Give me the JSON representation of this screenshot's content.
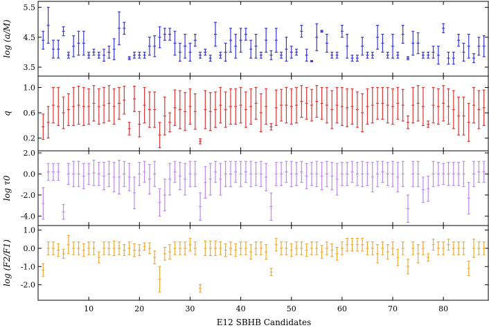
{
  "figure": {
    "xlabel": "E12 SBHB Candidates",
    "x_ticks": [
      "10",
      "20",
      "30",
      "40",
      "50",
      "60",
      "70",
      "80"
    ]
  },
  "chart_data": [
    {
      "type": "scatter",
      "errorbars": true,
      "ylabel": "log (a/M)",
      "color": "#3333dd",
      "xlim": [
        0,
        89
      ],
      "ylim": [
        3.2,
        5.7
      ],
      "y_ticks": [
        "5.5",
        "4.5",
        "3.5"
      ],
      "x": [
        1,
        2,
        3,
        4,
        5,
        6,
        7,
        8,
        9,
        10,
        11,
        12,
        13,
        14,
        15,
        16,
        17,
        18,
        19,
        20,
        21,
        22,
        23,
        24,
        25,
        26,
        27,
        28,
        29,
        30,
        31,
        32,
        33,
        34,
        35,
        36,
        37,
        38,
        39,
        40,
        41,
        42,
        43,
        44,
        45,
        46,
        47,
        48,
        49,
        50,
        51,
        52,
        53,
        54,
        55,
        56,
        57,
        58,
        59,
        60,
        61,
        62,
        63,
        64,
        65,
        66,
        67,
        68,
        69,
        70,
        71,
        72,
        73,
        74,
        75,
        76,
        77,
        78,
        79,
        80,
        81,
        82,
        83,
        84,
        85,
        86,
        87,
        88
      ],
      "y": [
        4.4,
        4.9,
        4.1,
        4.1,
        4.7,
        3.9,
        4.2,
        4.3,
        4.3,
        3.9,
        4.0,
        3.9,
        3.9,
        4.0,
        4.1,
        4.8,
        4.8,
        3.8,
        3.9,
        3.9,
        3.9,
        4.2,
        4.2,
        4.5,
        4.6,
        4.6,
        4.3,
        4.0,
        4.2,
        4.0,
        4.4,
        3.9,
        4.0,
        3.8,
        4.6,
        3.9,
        4.0,
        4.4,
        4.2,
        4.4,
        4.6,
        4.1,
        4.2,
        3.9,
        4.4,
        3.9,
        4.4,
        3.9,
        4.1,
        4.0,
        4.0,
        4.7,
        3.9,
        3.7,
        4.5,
        4.7,
        4.3,
        3.9,
        3.9,
        4.7,
        4.2,
        3.8,
        3.8,
        4.2,
        3.9,
        3.9,
        4.5,
        4.3,
        3.9,
        4.2,
        3.9,
        4.6,
        3.8,
        4.3,
        4.3,
        3.9,
        3.9,
        4.0,
        3.9,
        4.8,
        3.8,
        3.8,
        4.4,
        4.0,
        4.2,
        3.8,
        4.2,
        4.2
      ],
      "err": [
        0.3,
        0.6,
        0.3,
        0.3,
        0.15,
        0.1,
        0.35,
        0.4,
        0.4,
        0.1,
        0.1,
        0.1,
        0.2,
        0.2,
        0.35,
        0.55,
        0.2,
        0.05,
        0.1,
        0.1,
        0.1,
        0.3,
        0.35,
        0.35,
        0.2,
        0.2,
        0.4,
        0.3,
        0.4,
        0.3,
        0.2,
        0.1,
        0.1,
        0.1,
        0.4,
        0.1,
        0.3,
        0.4,
        0.4,
        0.4,
        0.2,
        0.3,
        0.4,
        0.1,
        0.4,
        0.15,
        0.4,
        0.1,
        0.4,
        0.2,
        0.1,
        0.2,
        0.2,
        0.02,
        0.45,
        0.03,
        0.3,
        0.1,
        0.1,
        0.2,
        0.4,
        0.1,
        0.1,
        0.3,
        0.1,
        0.1,
        0.4,
        0.3,
        0.1,
        0.4,
        0.1,
        0.3,
        0.05,
        0.4,
        0.35,
        0.1,
        0.1,
        0.2,
        0.3,
        0.15,
        0.2,
        0.2,
        0.2,
        0.3,
        0.4,
        0.15,
        0.3,
        0.35
      ]
    },
    {
      "type": "scatter",
      "errorbars": true,
      "ylabel": "q",
      "color": "#dd3333",
      "xlim": [
        0,
        89
      ],
      "ylim": [
        0.0,
        1.18
      ],
      "y_ticks": [
        "1.0",
        "0.6",
        "0.2"
      ],
      "x": [
        1,
        2,
        3,
        4,
        5,
        6,
        7,
        8,
        9,
        10,
        11,
        12,
        13,
        14,
        15,
        16,
        17,
        18,
        19,
        20,
        21,
        22,
        23,
        24,
        25,
        26,
        27,
        28,
        29,
        30,
        31,
        32,
        33,
        34,
        35,
        36,
        37,
        38,
        39,
        40,
        41,
        42,
        43,
        44,
        45,
        46,
        47,
        48,
        49,
        50,
        51,
        52,
        53,
        54,
        55,
        56,
        57,
        58,
        59,
        60,
        61,
        62,
        63,
        64,
        65,
        66,
        67,
        68,
        69,
        70,
        71,
        72,
        73,
        74,
        75,
        76,
        77,
        78,
        79,
        80,
        81,
        82,
        83,
        84,
        85,
        86,
        87,
        88
      ],
      "y": [
        0.38,
        0.45,
        0.72,
        0.7,
        0.6,
        0.65,
        0.7,
        0.72,
        0.7,
        0.7,
        0.75,
        0.7,
        0.72,
        0.75,
        0.7,
        0.75,
        0.8,
        0.35,
        0.82,
        0.42,
        0.72,
        0.65,
        0.65,
        0.25,
        0.55,
        0.45,
        0.68,
        0.65,
        0.62,
        0.7,
        0.62,
        0.15,
        0.65,
        0.62,
        0.65,
        0.72,
        0.65,
        0.7,
        0.7,
        0.72,
        0.65,
        0.7,
        0.75,
        0.6,
        0.7,
        0.38,
        0.68,
        0.72,
        0.72,
        0.7,
        0.72,
        0.78,
        0.75,
        0.72,
        0.78,
        0.75,
        0.72,
        0.65,
        0.72,
        0.7,
        0.68,
        0.7,
        0.65,
        0.6,
        0.7,
        0.72,
        0.75,
        0.75,
        0.72,
        0.7,
        0.75,
        0.72,
        0.45,
        0.72,
        0.75,
        0.7,
        0.42,
        0.72,
        0.7,
        0.75,
        0.7,
        0.65,
        0.55,
        0.55,
        0.45,
        0.72,
        0.65,
        0.68
      ],
      "err": [
        0.2,
        0.25,
        0.28,
        0.3,
        0.25,
        0.25,
        0.3,
        0.3,
        0.3,
        0.28,
        0.28,
        0.28,
        0.28,
        0.28,
        0.28,
        0.25,
        0.22,
        0.1,
        0.2,
        0.2,
        0.28,
        0.28,
        0.28,
        0.2,
        0.3,
        0.15,
        0.28,
        0.3,
        0.3,
        0.28,
        0.28,
        0.04,
        0.3,
        0.3,
        0.28,
        0.28,
        0.28,
        0.28,
        0.28,
        0.28,
        0.28,
        0.28,
        0.25,
        0.3,
        0.28,
        0.05,
        0.28,
        0.25,
        0.28,
        0.28,
        0.28,
        0.25,
        0.25,
        0.25,
        0.25,
        0.25,
        0.28,
        0.3,
        0.28,
        0.3,
        0.3,
        0.28,
        0.28,
        0.3,
        0.28,
        0.28,
        0.25,
        0.25,
        0.28,
        0.28,
        0.25,
        0.25,
        0.1,
        0.28,
        0.28,
        0.3,
        0.05,
        0.28,
        0.28,
        0.28,
        0.28,
        0.3,
        0.3,
        0.3,
        0.3,
        0.28,
        0.3,
        0.28
      ]
    },
    {
      "type": "scatter",
      "errorbars": true,
      "ylabel": "log τ0",
      "color": "#bb88ee",
      "xlim": [
        0,
        89
      ],
      "ylim": [
        -4.9,
        2.2
      ],
      "y_ticks": [
        "2.0",
        "0.0",
        "-2.0",
        "-4.0"
      ],
      "x": [
        1,
        2,
        3,
        4,
        5,
        6,
        7,
        8,
        9,
        10,
        11,
        12,
        13,
        14,
        15,
        16,
        17,
        18,
        19,
        20,
        21,
        22,
        23,
        24,
        25,
        26,
        27,
        28,
        29,
        30,
        31,
        32,
        33,
        34,
        35,
        36,
        37,
        38,
        39,
        40,
        41,
        42,
        43,
        44,
        45,
        46,
        47,
        48,
        49,
        50,
        51,
        52,
        53,
        54,
        55,
        56,
        57,
        58,
        59,
        60,
        61,
        62,
        63,
        64,
        65,
        66,
        67,
        68,
        69,
        70,
        71,
        72,
        73,
        74,
        75,
        76,
        77,
        78,
        79,
        80,
        81,
        82,
        83,
        84,
        85,
        86,
        87,
        88
      ],
      "y": [
        -2.8,
        0.2,
        0.2,
        0.2,
        -3.6,
        0.0,
        0.0,
        0.0,
        -0.2,
        0.0,
        0.1,
        0.0,
        -0.2,
        0.0,
        -0.3,
        -0.3,
        0.0,
        -0.3,
        -1.8,
        0.0,
        0.2,
        -0.5,
        0.0,
        -2.7,
        -2.0,
        -0.5,
        0.2,
        -0.2,
        -0.5,
        0.0,
        0.0,
        -3.1,
        -0.8,
        -0.5,
        0.2,
        -0.5,
        0.0,
        0.0,
        0.2,
        0.0,
        0.2,
        0.0,
        0.0,
        0.0,
        -0.3,
        -3.1,
        0.0,
        0.0,
        0.2,
        0.0,
        0.0,
        0.2,
        -0.2,
        0.0,
        0.0,
        -0.2,
        0.0,
        -0.2,
        -0.5,
        0.0,
        0.0,
        0.2,
        0.0,
        0.0,
        0.0,
        -0.3,
        0.0,
        0.2,
        0.0,
        0.0,
        -0.3,
        0.0,
        -3.3,
        0.0,
        0.0,
        -1.5,
        -1.4,
        0.0,
        0.0,
        0.0,
        0.0,
        0.0,
        0.0,
        0.0,
        -2.3,
        0.0,
        0.2,
        0.2
      ],
      "err": [
        1.5,
        0.8,
        0.8,
        0.8,
        0.7,
        1.0,
        1.2,
        1.2,
        1.2,
        1.0,
        1.2,
        1.1,
        1.3,
        1.2,
        1.4,
        1.6,
        1.2,
        1.3,
        1.5,
        1.1,
        1.0,
        1.4,
        1.2,
        1.3,
        1.5,
        1.5,
        1.0,
        1.3,
        1.5,
        1.2,
        1.2,
        1.3,
        1.5,
        1.5,
        1.0,
        1.5,
        1.2,
        1.2,
        1.0,
        1.2,
        1.0,
        1.2,
        1.1,
        1.2,
        1.3,
        1.3,
        1.1,
        1.1,
        1.0,
        1.2,
        1.1,
        1.0,
        1.2,
        1.1,
        1.2,
        1.3,
        1.2,
        1.3,
        1.5,
        1.1,
        1.1,
        1.0,
        1.1,
        1.2,
        1.1,
        1.4,
        1.2,
        1.0,
        1.1,
        1.2,
        1.4,
        1.2,
        1.3,
        1.2,
        1.2,
        1.2,
        1.2,
        1.2,
        1.1,
        1.0,
        1.1,
        1.1,
        1.1,
        1.2,
        1.5,
        1.2,
        1.0,
        1.0
      ]
    },
    {
      "type": "scatter",
      "errorbars": true,
      "ylabel": "log (F2/F1)",
      "color": "#eeaa33",
      "xlim": [
        0,
        89
      ],
      "ylim": [
        -2.85,
        1.25
      ],
      "y_ticks": [
        "1.0",
        "0.0",
        "-1.0",
        "-2.0"
      ],
      "x": [
        1,
        2,
        3,
        4,
        5,
        6,
        7,
        8,
        9,
        10,
        11,
        12,
        13,
        14,
        15,
        16,
        17,
        18,
        19,
        20,
        21,
        22,
        23,
        24,
        25,
        26,
        27,
        28,
        29,
        30,
        31,
        32,
        33,
        34,
        35,
        36,
        37,
        38,
        39,
        40,
        41,
        42,
        43,
        44,
        45,
        46,
        47,
        48,
        49,
        50,
        51,
        52,
        53,
        54,
        55,
        56,
        57,
        58,
        59,
        60,
        61,
        62,
        63,
        64,
        65,
        66,
        67,
        68,
        69,
        70,
        71,
        72,
        73,
        74,
        75,
        76,
        77,
        78,
        79,
        80,
        81,
        82,
        83,
        84,
        85,
        86,
        87,
        88
      ],
      "y": [
        -1.2,
        0.0,
        0.0,
        -0.1,
        -0.3,
        0.2,
        0.0,
        0.0,
        -0.1,
        0.0,
        0.0,
        -0.5,
        0.0,
        0.0,
        0.0,
        0.0,
        -0.1,
        0.0,
        -0.1,
        -0.1,
        0.1,
        0.0,
        -0.5,
        -1.7,
        -0.3,
        -0.2,
        0.0,
        0.0,
        0.0,
        0.2,
        0.0,
        -2.2,
        0.0,
        0.0,
        0.0,
        0.0,
        -0.1,
        0.0,
        -0.1,
        0.0,
        0.0,
        -0.2,
        0.0,
        0.0,
        -0.2,
        -1.3,
        0.2,
        0.0,
        0.0,
        -0.1,
        0.0,
        0.0,
        -0.1,
        0.0,
        0.0,
        -0.2,
        0.0,
        -0.1,
        -0.3,
        0.0,
        0.2,
        0.2,
        0.2,
        0.2,
        0.0,
        0.0,
        -0.3,
        0.0,
        -0.2,
        0.0,
        -0.5,
        0.0,
        -1.0,
        0.0,
        -0.3,
        0.0,
        -0.5,
        0.2,
        0.0,
        0.0,
        0.2,
        0.0,
        0.0,
        0.0,
        -1.1,
        0.0,
        0.0,
        0.0
      ],
      "err": [
        0.35,
        0.35,
        0.35,
        0.35,
        0.25,
        0.5,
        0.35,
        0.35,
        0.35,
        0.35,
        0.35,
        0.3,
        0.35,
        0.35,
        0.4,
        0.35,
        0.3,
        0.35,
        0.35,
        0.3,
        0.2,
        0.3,
        0.35,
        0.7,
        0.35,
        0.4,
        0.35,
        0.35,
        0.35,
        0.35,
        0.35,
        0.2,
        0.4,
        0.4,
        0.4,
        0.35,
        0.35,
        0.35,
        0.35,
        0.35,
        0.35,
        0.4,
        0.35,
        0.35,
        0.4,
        0.2,
        0.35,
        0.35,
        0.35,
        0.35,
        0.35,
        0.35,
        0.35,
        0.35,
        0.35,
        0.35,
        0.35,
        0.35,
        0.35,
        0.35,
        0.35,
        0.35,
        0.35,
        0.35,
        0.35,
        0.35,
        0.5,
        0.35,
        0.4,
        0.35,
        0.45,
        0.35,
        0.4,
        0.35,
        0.5,
        0.35,
        0.2,
        0.3,
        0.35,
        0.35,
        0.3,
        0.35,
        0.35,
        0.35,
        0.4,
        0.5,
        0.35,
        0.35
      ]
    }
  ]
}
